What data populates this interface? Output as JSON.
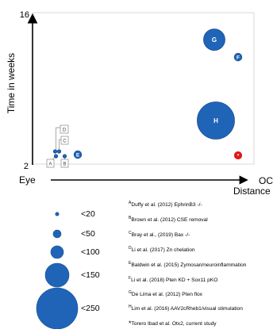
{
  "chart_data": {
    "type": "scatter",
    "xlabel": "Distance",
    "ylabel": "Time in weeks",
    "x_axis_start_label": "Eye",
    "x_axis_end_label": "OC",
    "y_ticks": [
      "2",
      "16"
    ],
    "ylim": [
      2,
      16
    ],
    "grid": false,
    "colors": {
      "marker": "#1f64b7",
      "current_study": "#e01a1a",
      "marker_edge": "#1a4f94"
    },
    "points": [
      {
        "label": "A",
        "size": 20,
        "labeled_box": true
      },
      {
        "label": "B",
        "size": 20,
        "labeled_box": true
      },
      {
        "label": "C",
        "size": 20,
        "labeled_box": true
      },
      {
        "label": "D",
        "size": 20,
        "labeled_box": true
      },
      {
        "label": "E",
        "size": 50
      },
      {
        "label": "F",
        "size": 50
      },
      {
        "label": "G",
        "size": 150
      },
      {
        "label": "H",
        "size": 250
      },
      {
        "label": "*",
        "size": 50,
        "current_study": true
      }
    ],
    "size_legend": [
      {
        "label": "<20",
        "size": 20
      },
      {
        "label": "<50",
        "size": 50
      },
      {
        "label": "<100",
        "size": 100
      },
      {
        "label": "<150",
        "size": 150
      },
      {
        "label": "<250",
        "size": 250
      }
    ],
    "references": [
      {
        "key": "A",
        "text": "Duffy et al.  (2012)  EphrinB3 -/-"
      },
      {
        "key": "B",
        "text": "Brown et al. (2012) CSE removal"
      },
      {
        "key": "C",
        "text": "Bray et al., (2019)  Bax -/-"
      },
      {
        "key": "D",
        "text": "Li et al. (2017)  Zn chelation"
      },
      {
        "key": "E",
        "text": "Baldwin et al. (2015) Zymosan/neuroinflammation"
      },
      {
        "key": "F",
        "text": "Li et al. (2018) Pten KD + Sox11 pKO"
      },
      {
        "key": "G",
        "text": "De Lima et al. (2012)  Pten flox"
      },
      {
        "key": "H",
        "text": "Lim et al.  (2016)  AAV2cRheb1/visual stimulation"
      },
      {
        "key": "*",
        "text": "Torero Ibad et al.  Otx2, current study"
      }
    ]
  }
}
